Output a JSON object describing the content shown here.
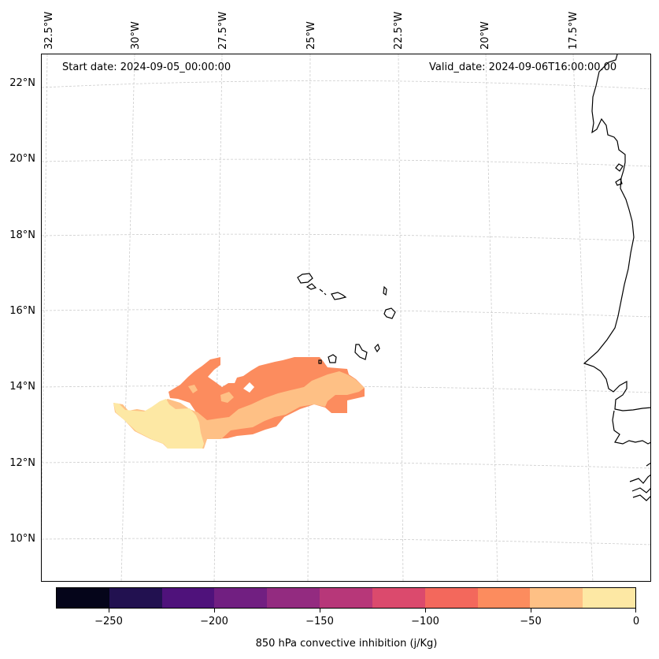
{
  "map": {
    "start_date": "Start date: 2024-09-05_00:00:00",
    "valid_date": "Valid_date: 2024-09-06T16:00:00.00",
    "lon_labels": [
      "32.5°W",
      "30°W",
      "27.5°W",
      "25°W",
      "22.5°W",
      "20°W",
      "17.5°W"
    ],
    "lat_labels": [
      "22°N",
      "20°N",
      "18°N",
      "16°N",
      "14°N",
      "12°N",
      "10°N"
    ],
    "variable": "850 hPa convective inhibition (j/Kg)",
    "coastline_color": "#000000",
    "grid_color": "#cccccc"
  },
  "colorbar": {
    "title": "850 hPa convective inhibition (j/Kg)",
    "tick_labels": [
      "−250",
      "−200",
      "−150",
      "−100",
      "−50",
      "0"
    ],
    "min": -275,
    "max": 0,
    "levels": [
      -275,
      -250,
      -225,
      -200,
      -175,
      -150,
      -125,
      -100,
      -75,
      -50,
      -25,
      0
    ],
    "colors": [
      "#05051a",
      "#221150",
      "#4f127b",
      "#711f81",
      "#932b80",
      "#b73779",
      "#db4a6d",
      "#f3685c",
      "#fc8c5e",
      "#fec085",
      "#fde8a4"
    ]
  },
  "field_regions": [
    {
      "band": "-75 to -50",
      "color": "#fc8c5e"
    },
    {
      "band": "-50 to -25",
      "color": "#fec085"
    },
    {
      "band": "-25 to 0",
      "color": "#fde8a4"
    }
  ]
}
